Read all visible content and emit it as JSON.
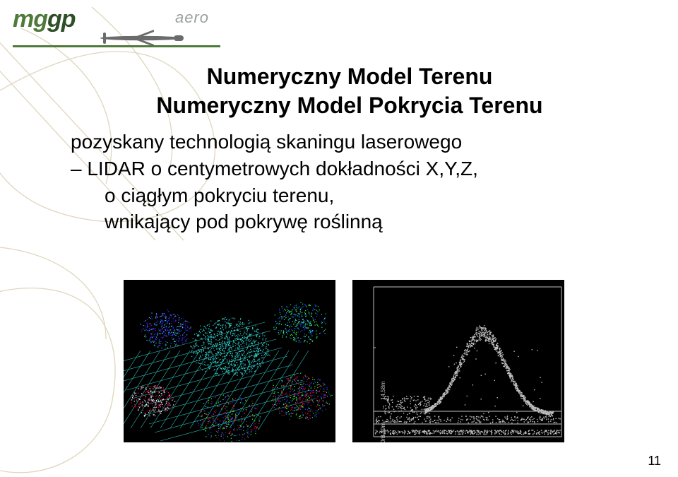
{
  "logo": {
    "main_part1": "mg",
    "main_part2": "gp",
    "sub": "aero",
    "color_light": "#4f7a3a",
    "color_dark": "#2e4f28",
    "sub_color": "#9aa0a0",
    "rule_color": "#4f7a3a"
  },
  "bg_line_color": "#dcd2b8",
  "title": "Numeryczny Model Terenu",
  "subtitle": "Numeryczny Model Pokrycia Terenu",
  "bullet_line1": "pozyskany technologią skaningu laserowego",
  "bullet_line2_prefix": "LIDAR o centymetrowych dokładności X,Y,Z,",
  "bullet_line3": "o ciągłym pokryciu terenu,",
  "bullet_line4": "wnikający pod pokrywę roślinną",
  "title_fontsize": 32,
  "body_fontsize": 28,
  "page_number": "11",
  "fig_left": {
    "type": "lidar-pointcloud-render",
    "background": "#000000",
    "dominant_colors": [
      "#2fd4d0",
      "#1a4aff",
      "#ff0040",
      "#33ff33",
      "#ffffff",
      "#6a00ff"
    ],
    "grid_line_color": "#2fd4d0"
  },
  "fig_right": {
    "type": "lidar-cross-section",
    "background": "#000000",
    "point_color": "#bfbfbf",
    "axis_color": "#bfbfbf",
    "ytick_labels": [
      "3,60m",
      "3,39m",
      "14,58m"
    ],
    "tick_fontsize": 8,
    "hill_peak_rel_height": 0.58,
    "ground_band_rel_height": 0.14,
    "left_group_rel_height": 0.12
  }
}
